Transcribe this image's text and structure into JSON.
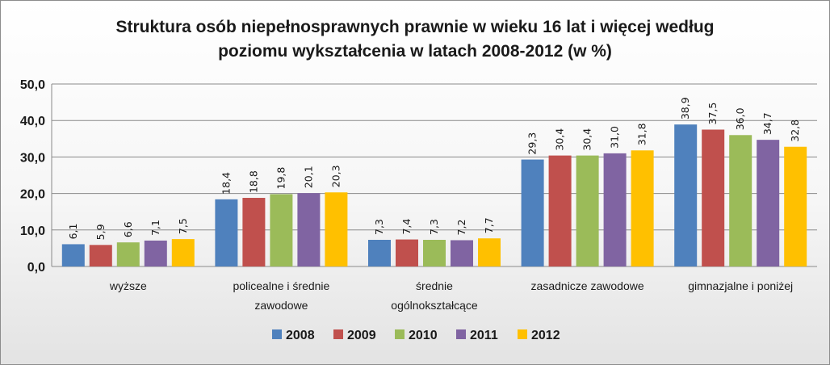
{
  "chart_data": {
    "type": "bar",
    "title_lines": [
      "Struktura osób niepełnosprawnych prawnie w wieku 16 lat i więcej według",
      "poziomu  wykształcenia w latach 2008-2012 (w %)"
    ],
    "categories": [
      [
        "wyższe"
      ],
      [
        "policealne i średnie",
        "zawodowe"
      ],
      [
        "średnie",
        "ogólnokształcące"
      ],
      [
        "zasadnicze zawodowe"
      ],
      [
        "gimnazjalne i poniżej"
      ]
    ],
    "series": [
      {
        "name": "2008",
        "color": "#4f81bd",
        "values": [
          6.1,
          18.4,
          7.3,
          29.3,
          38.9
        ],
        "labels": [
          "6,1",
          "18,4",
          "7,3",
          "29,3",
          "38,9"
        ]
      },
      {
        "name": "2009",
        "color": "#c0504d",
        "values": [
          5.9,
          18.8,
          7.4,
          30.4,
          37.5
        ],
        "labels": [
          "5,9",
          "18,8",
          "7,4",
          "30,4",
          "37,5"
        ]
      },
      {
        "name": "2010",
        "color": "#9bbb59",
        "values": [
          6.6,
          19.8,
          7.3,
          30.4,
          36.0
        ],
        "labels": [
          "6,6",
          "19,8",
          "7,3",
          "30,4",
          "36,0"
        ]
      },
      {
        "name": "2011",
        "color": "#8064a2",
        "values": [
          7.1,
          20.1,
          7.2,
          31.0,
          34.7
        ],
        "labels": [
          "7,1",
          "20,1",
          "7,2",
          "31,0",
          "34,7"
        ]
      },
      {
        "name": "2012",
        "color": "#ffc000",
        "values": [
          7.5,
          20.3,
          7.7,
          31.8,
          32.8
        ],
        "labels": [
          "7,5",
          "20,3",
          "7,7",
          "31,8",
          "32,8"
        ]
      }
    ],
    "ylim": [
      0,
      50
    ],
    "yticks": [
      0,
      10,
      20,
      30,
      40,
      50
    ],
    "ytick_labels": [
      "0,0",
      "10,0",
      "20,0",
      "30,0",
      "40,0",
      "50,0"
    ],
    "grid": true,
    "legend_position": "bottom"
  }
}
